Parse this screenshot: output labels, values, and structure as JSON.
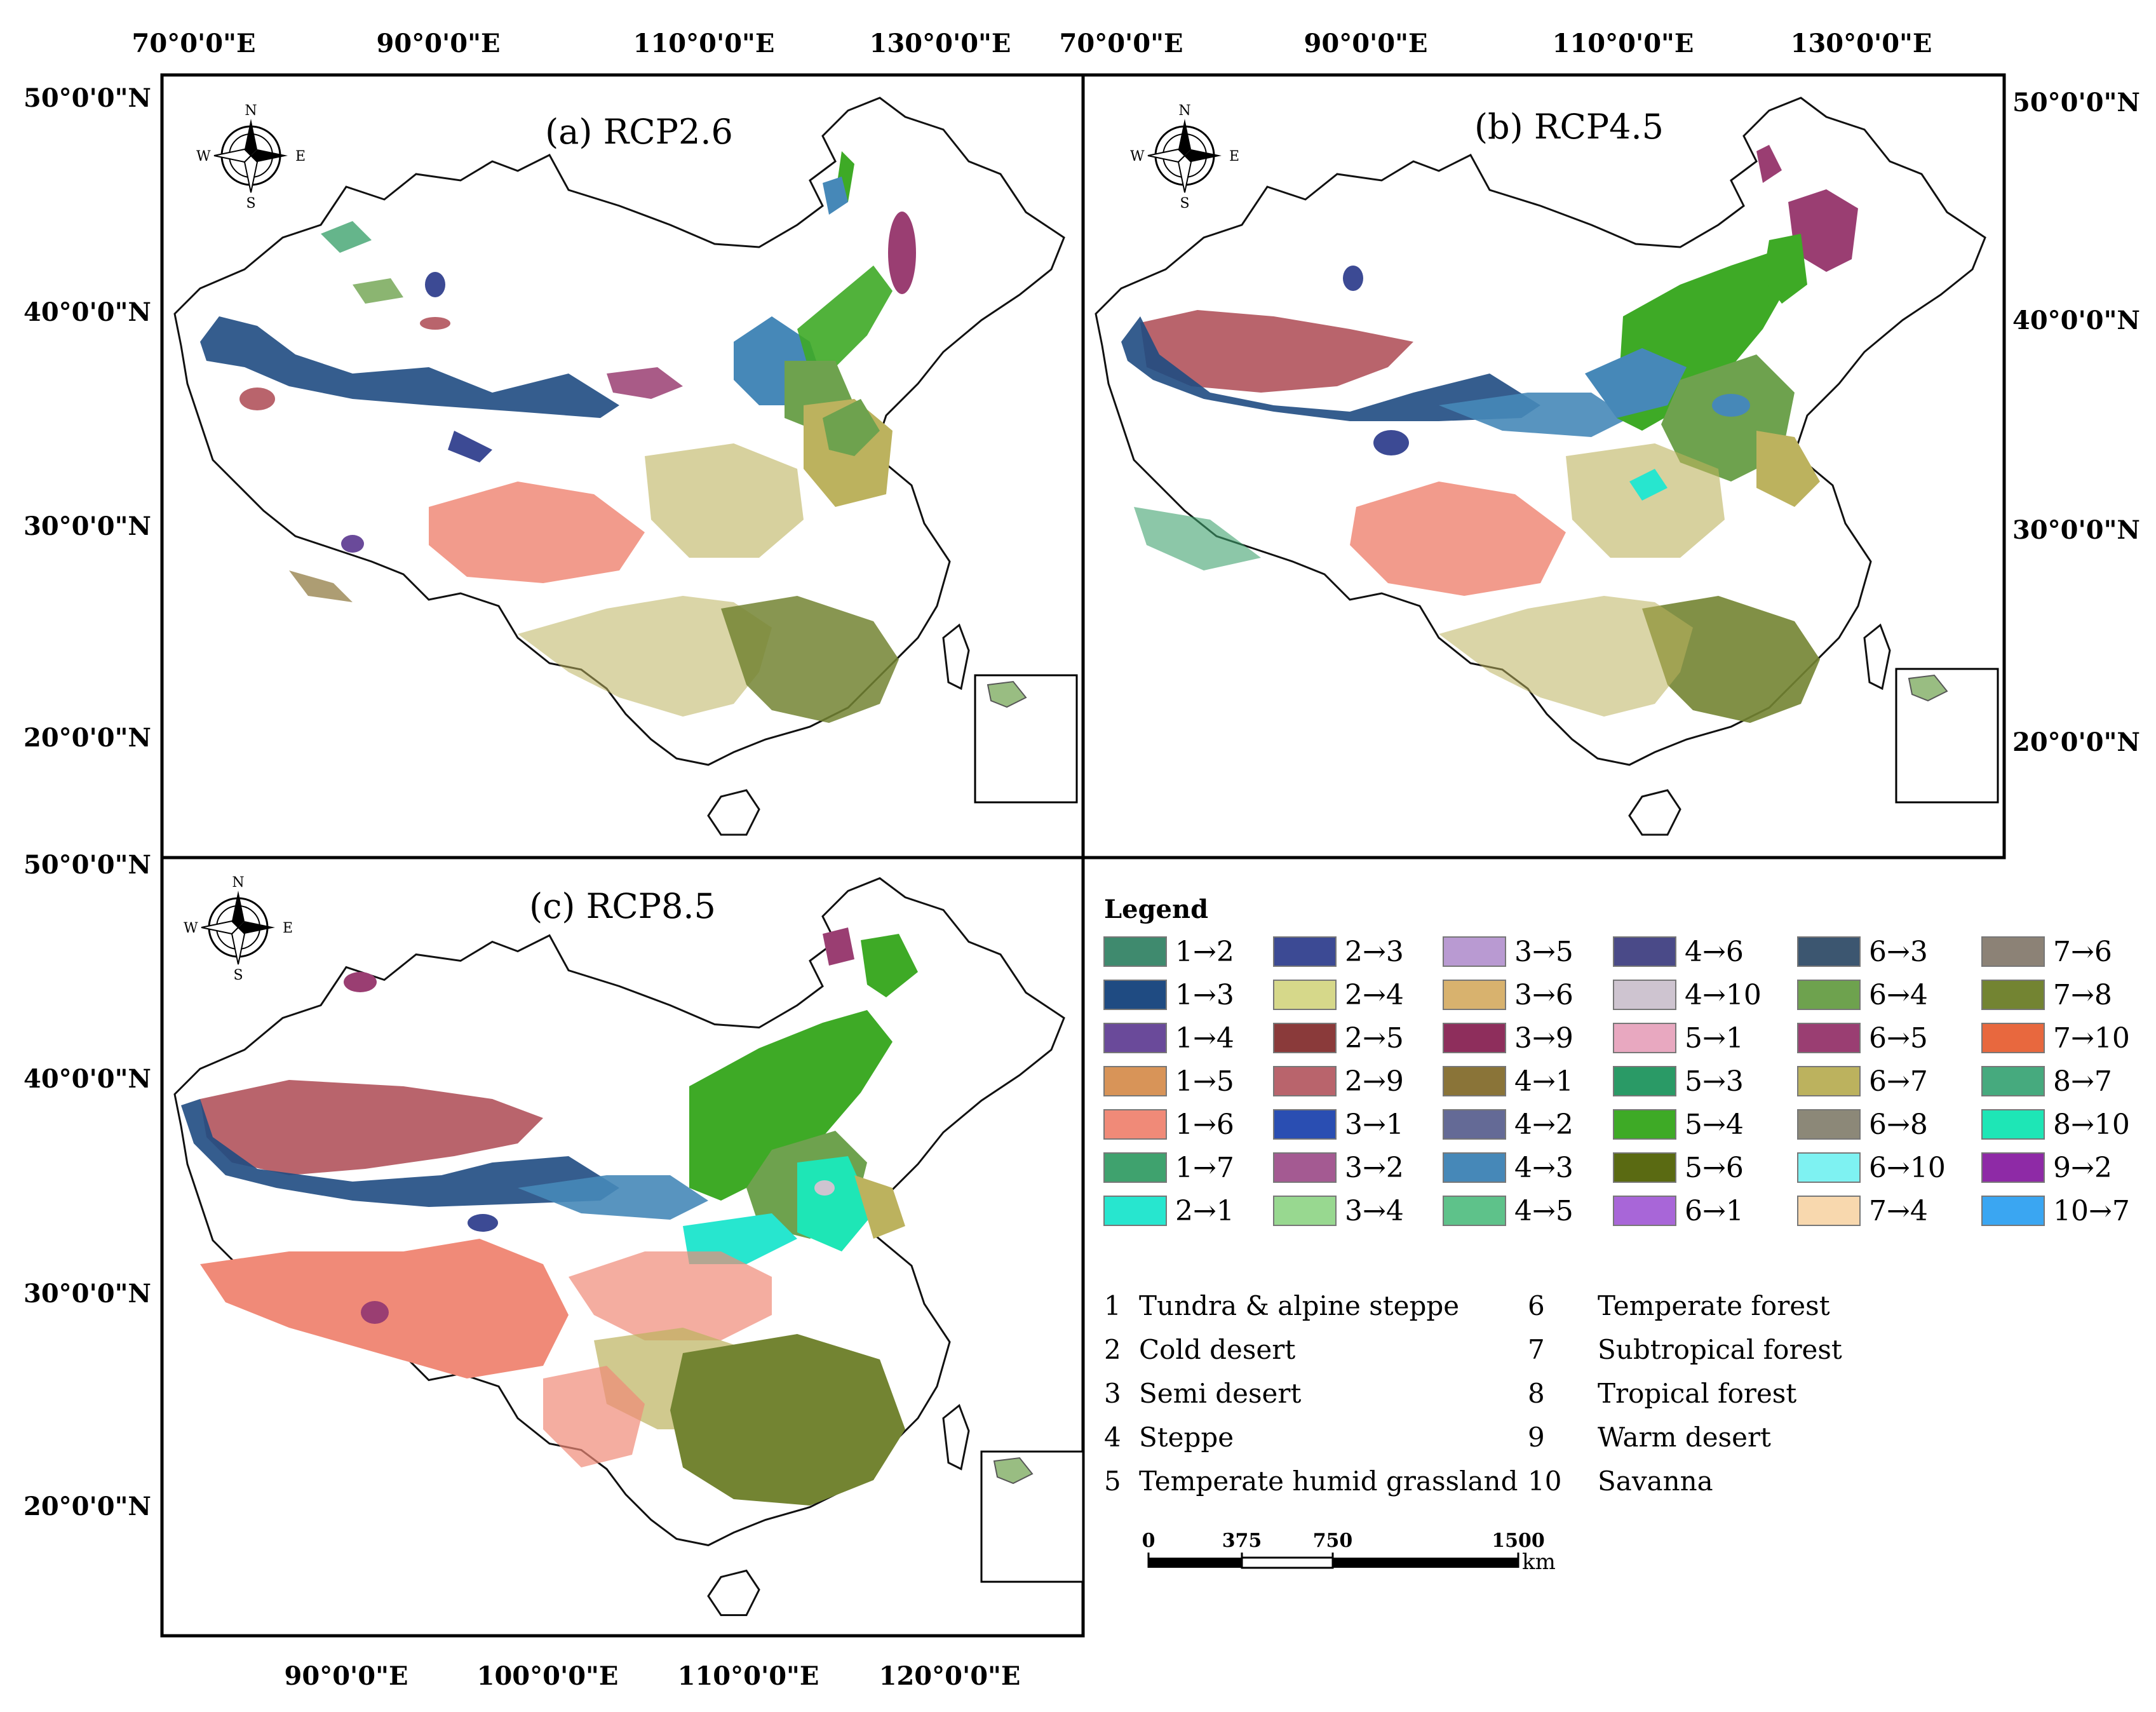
{
  "panels": [
    {
      "id": "a",
      "title": "(a) RCP2.6"
    },
    {
      "id": "b",
      "title": "(b) RCP4.5"
    },
    {
      "id": "c",
      "title": "(c) RCP8.5"
    }
  ],
  "axes": {
    "top_lon": [
      "70°0'0\"E",
      "90°0'0\"E",
      "110°0'0\"E",
      "130°0'0\"E"
    ],
    "bottom_lon": [
      "90°0'0\"E",
      "100°0'0\"E",
      "110°0'0\"E",
      "120°0'0\"E"
    ],
    "lat_upper": [
      "50°0'0\"N",
      "40°0'0\"N",
      "30°0'0\"N",
      "20°0'0\"N"
    ],
    "lat_lower": [
      "50°0'0\"N",
      "40°0'0\"N",
      "30°0'0\"N",
      "20°0'0\"N"
    ]
  },
  "compass": {
    "n": "N",
    "s": "S",
    "e": "E",
    "w": "W"
  },
  "legend": {
    "title": "Legend",
    "items": [
      {
        "label": "1→2",
        "color": "#3f8a6e"
      },
      {
        "label": "1→3",
        "color": "#1f4b82"
      },
      {
        "label": "1→4",
        "color": "#6a4a9a"
      },
      {
        "label": "1→5",
        "color": "#d89458"
      },
      {
        "label": "1→6",
        "color": "#f08a78"
      },
      {
        "label": "1→7",
        "color": "#3fa26e"
      },
      {
        "label": "2→1",
        "color": "#27e6cf"
      },
      {
        "label": "2→3",
        "color": "#3c4a94"
      },
      {
        "label": "2→4",
        "color": "#d6d88a"
      },
      {
        "label": "2→5",
        "color": "#8a3a3a"
      },
      {
        "label": "2→9",
        "color": "#b9646c"
      },
      {
        "label": "3→1",
        "color": "#2a4eb2"
      },
      {
        "label": "3→2",
        "color": "#a45a92"
      },
      {
        "label": "3→4",
        "color": "#98d890"
      },
      {
        "label": "3→5",
        "color": "#b99ad2"
      },
      {
        "label": "3→6",
        "color": "#d8b26e"
      },
      {
        "label": "3→9",
        "color": "#8e2e5c"
      },
      {
        "label": "4→1",
        "color": "#8a7438"
      },
      {
        "label": "4→2",
        "color": "#646a96"
      },
      {
        "label": "4→3",
        "color": "#4688b8"
      },
      {
        "label": "4→5",
        "color": "#5ec28a"
      },
      {
        "label": "4→6",
        "color": "#4a4a88"
      },
      {
        "label": "4→10",
        "color": "#cec4d0"
      },
      {
        "label": "5→1",
        "color": "#e8a8c0"
      },
      {
        "label": "5→3",
        "color": "#2a9a66"
      },
      {
        "label": "5→4",
        "color": "#3eaa26"
      },
      {
        "label": "5→6",
        "color": "#5a6a12"
      },
      {
        "label": "6→1",
        "color": "#a866d8"
      },
      {
        "label": "6→3",
        "color": "#3c5670"
      },
      {
        "label": "6→4",
        "color": "#6ea24e"
      },
      {
        "label": "6→5",
        "color": "#9a3e72"
      },
      {
        "label": "6→7",
        "color": "#bcb25e"
      },
      {
        "label": "6→8",
        "color": "#8c8878"
      },
      {
        "label": "6→10",
        "color": "#7ef2f2"
      },
      {
        "label": "7→4",
        "color": "#f8d8ae"
      },
      {
        "label": "7→6",
        "color": "#8c8276"
      },
      {
        "label": "7→8",
        "color": "#738432"
      },
      {
        "label": "7→10",
        "color": "#e8683e"
      },
      {
        "label": "8→7",
        "color": "#46aa7e"
      },
      {
        "label": "8→10",
        "color": "#1ee6b6"
      },
      {
        "label": "9→2",
        "color": "#8e2aa6"
      },
      {
        "label": "10→7",
        "color": "#3aa6f2"
      }
    ]
  },
  "classes": [
    {
      "num": "1",
      "name": "Tundra & alpine steppe"
    },
    {
      "num": "2",
      "name": "Cold desert"
    },
    {
      "num": "3",
      "name": "Semi desert"
    },
    {
      "num": "4",
      "name": "Steppe"
    },
    {
      "num": "5",
      "name": "Temperate humid grassland"
    },
    {
      "num": "6",
      "name": "Temperate forest"
    },
    {
      "num": "7",
      "name": "Subtropical forest"
    },
    {
      "num": "8",
      "name": "Tropical forest"
    },
    {
      "num": "9",
      "name": "Warm desert"
    },
    {
      "num": "10",
      "name": "Savanna"
    }
  ],
  "scalebar": {
    "ticks": [
      "0",
      "375",
      "750",
      "1500"
    ],
    "unit": "km"
  }
}
